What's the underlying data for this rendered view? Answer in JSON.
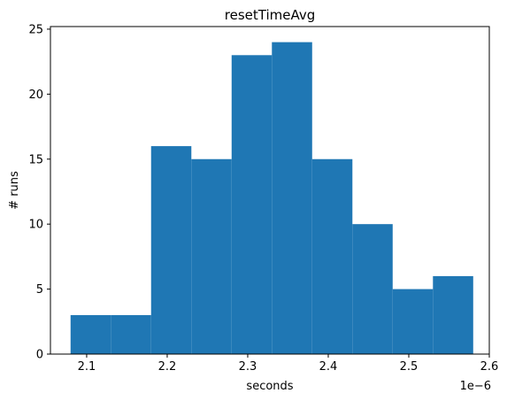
{
  "chart_data": {
    "type": "bar",
    "title": "resetTimeAvg",
    "xlabel": "seconds",
    "ylabel": "# runs",
    "x_offset_label": "1e−6",
    "bins": [
      {
        "start": 2.08,
        "end": 2.13,
        "value": 3
      },
      {
        "start": 2.13,
        "end": 2.18,
        "value": 3
      },
      {
        "start": 2.18,
        "end": 2.23,
        "value": 16
      },
      {
        "start": 2.23,
        "end": 2.28,
        "value": 15
      },
      {
        "start": 2.28,
        "end": 2.33,
        "value": 23
      },
      {
        "start": 2.33,
        "end": 2.38,
        "value": 24
      },
      {
        "start": 2.38,
        "end": 2.43,
        "value": 15
      },
      {
        "start": 2.43,
        "end": 2.48,
        "value": 10
      },
      {
        "start": 2.48,
        "end": 2.53,
        "value": 5
      },
      {
        "start": 2.53,
        "end": 2.58,
        "value": 6
      }
    ],
    "xlim": [
      2.055,
      2.6
    ],
    "ylim": [
      0,
      25.2
    ],
    "x_ticks": [
      2.1,
      2.2,
      2.3,
      2.4,
      2.5,
      2.6
    ],
    "x_tick_labels": [
      "2.1",
      "2.2",
      "2.3",
      "2.4",
      "2.5",
      "2.6"
    ],
    "y_ticks": [
      0,
      5,
      10,
      15,
      20,
      25
    ],
    "y_tick_labels": [
      "0",
      "5",
      "10",
      "15",
      "20",
      "25"
    ],
    "bar_color": "#1f77b4",
    "grid": false,
    "legend": false
  }
}
